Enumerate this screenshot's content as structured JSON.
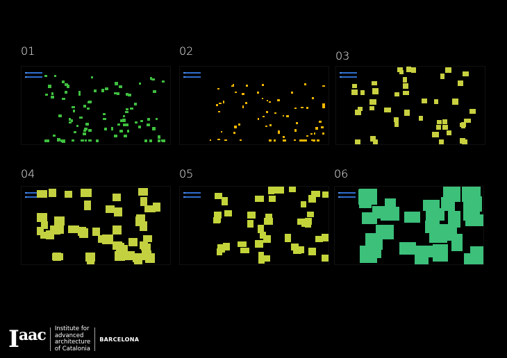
{
  "panels": [
    {
      "label": "01",
      "color": "#3fbf3f"
    },
    {
      "label": "02",
      "color": "#f5b800"
    },
    {
      "label": "03",
      "color": "#c8d040"
    },
    {
      "label": "04",
      "color": "#c3d040"
    },
    {
      "label": "05",
      "color": "#c3d43a"
    },
    {
      "label": "06",
      "color": "#3cc07a"
    }
  ],
  "logo": {
    "word": "Iaac",
    "institute_lines": [
      "Institute for",
      "advanced",
      "architecture",
      "of Catalonia"
    ],
    "city": "BARCELONA"
  }
}
